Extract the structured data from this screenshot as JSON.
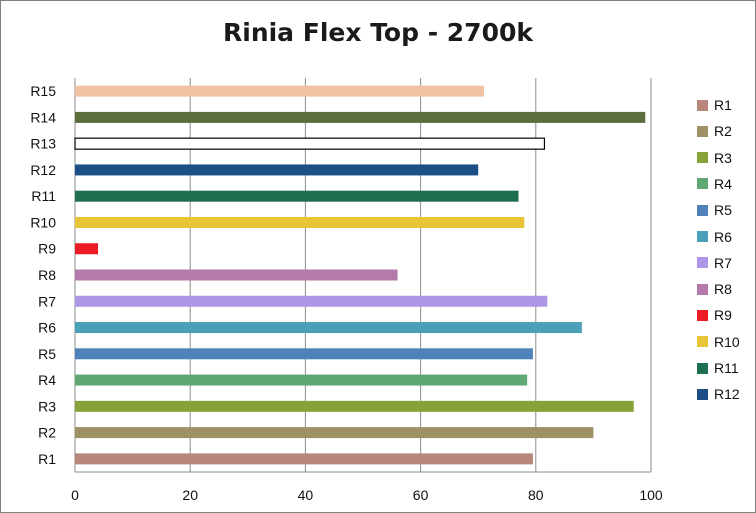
{
  "chart_data": {
    "type": "bar",
    "orientation": "horizontal",
    "title": "Rinia Flex Top - 2700k",
    "xlabel": "",
    "ylabel": "",
    "xlim": [
      0,
      100
    ],
    "x_ticks": [
      0,
      20,
      40,
      60,
      80,
      100
    ],
    "grid": "vertical",
    "legend_position": "right",
    "categories": [
      "R1",
      "R2",
      "R3",
      "R4",
      "R5",
      "R6",
      "R7",
      "R8",
      "R9",
      "R10",
      "R11",
      "R12",
      "R13",
      "R14",
      "R15"
    ],
    "values": [
      79.5,
      90,
      97,
      78.5,
      79.5,
      88,
      82,
      56,
      4,
      78,
      77,
      70,
      81.5,
      99,
      71
    ],
    "colors": [
      "#b8877c",
      "#9d9165",
      "#86a33a",
      "#5fa873",
      "#4f82b8",
      "#4aa0b8",
      "#ad96e6",
      "#b47aab",
      "#ed1c24",
      "#e8c536",
      "#1d6f4f",
      "#1b4f85",
      "#ffffff",
      "#5b6d3b",
      "#f0c3a2"
    ],
    "legend": [
      "R1",
      "R2",
      "R3",
      "R4",
      "R5",
      "R6",
      "R7",
      "R8",
      "R9",
      "R10",
      "R11",
      "R12"
    ]
  }
}
